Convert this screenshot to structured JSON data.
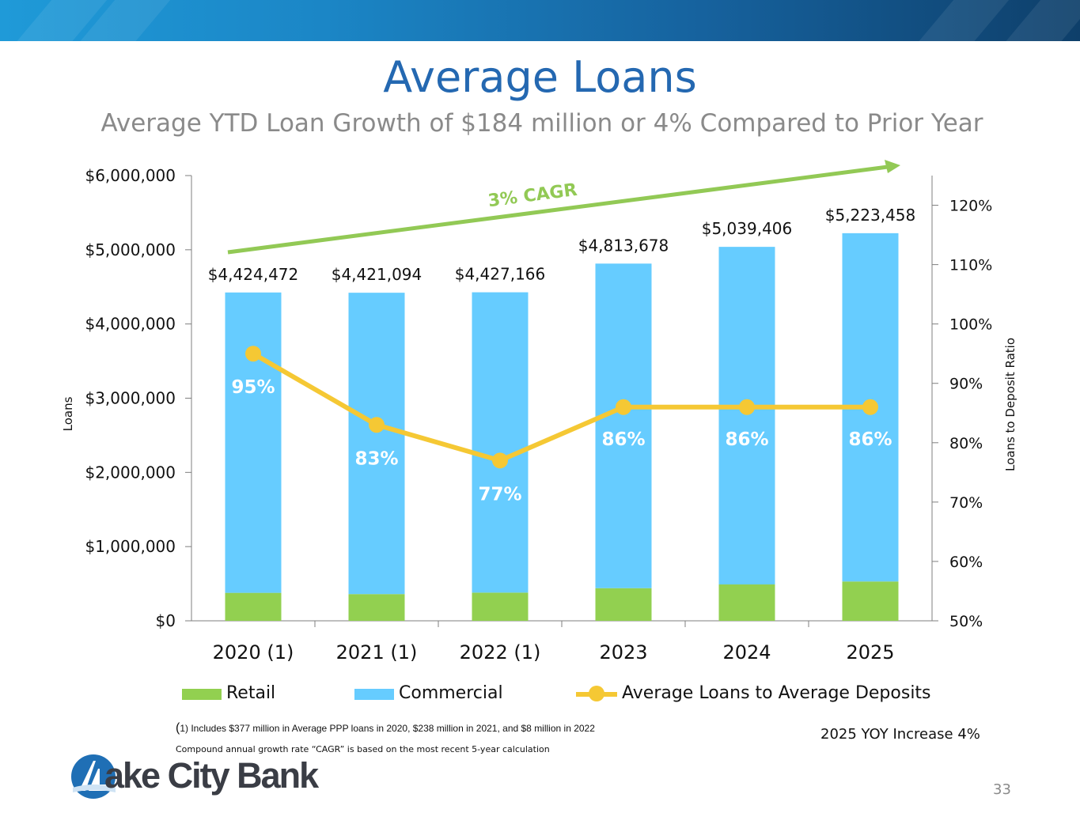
{
  "slide": {
    "title": "Average Loans",
    "subtitle": "Average YTD Loan Growth of $184 million or 4% Compared to Prior Year",
    "page_number": "33",
    "yoy_note": "2025 YOY Increase 4%",
    "footnote1_paren": "(",
    "footnote1_text": "1) Includes $377 million in Average PPP loans in 2020, $238 million in 2021, and $8 million in 2022",
    "footnote2": "Compound annual growth rate “CAGR” is based on the most recent 5-year calculation",
    "logo_text": "Lake City Bank",
    "logo_display_text": "ake City Bank"
  },
  "colors": {
    "retail": "#92d050",
    "commercial": "#66ccff",
    "ratio_line": "#f5c834",
    "cagr_arrow": "#92c955",
    "title": "#2468b1",
    "header_band": "#1b86c6"
  },
  "legend": {
    "retail": "Retail",
    "commercial": "Commercial",
    "ratio": "Average Loans to Average Deposits"
  },
  "chart_data": {
    "type": "bar",
    "stacked": true,
    "categories": [
      "2020 (1)",
      "2021 (1)",
      "2022 (1)",
      "2023",
      "2024",
      "2025"
    ],
    "series": [
      {
        "name": "Retail",
        "axis": "left",
        "values": [
          377000,
          360000,
          380000,
          440000,
          490000,
          530000
        ]
      },
      {
        "name": "Commercial",
        "axis": "left",
        "values": [
          4047472,
          4061094,
          4047166,
          4373678,
          4549406,
          4693458
        ]
      },
      {
        "name": "Average Loans to Average Deposits",
        "type": "line",
        "axis": "right",
        "values": [
          95,
          83,
          77,
          86,
          86,
          86
        ]
      }
    ],
    "total_labels": [
      "$4,424,472",
      "$4,421,094",
      "$4,427,166",
      "$4,813,678",
      "$5,039,406",
      "$5,223,458"
    ],
    "ratio_labels": [
      "95%",
      "83%",
      "77%",
      "86%",
      "86%",
      "86%"
    ],
    "ylabel": "Loans",
    "y2label": "Loans to Deposit Ratio",
    "ylim": [
      0,
      6000000
    ],
    "yticks": [
      0,
      1000000,
      2000000,
      3000000,
      4000000,
      5000000,
      6000000
    ],
    "ytick_labels": [
      "$0",
      "$1,000,000",
      "$2,000,000",
      "$3,000,000",
      "$4,000,000",
      "$5,000,000",
      "$6,000,000"
    ],
    "y2lim": [
      50,
      125
    ],
    "y2ticks": [
      50,
      60,
      70,
      80,
      90,
      100,
      110,
      120
    ],
    "y2tick_labels": [
      "50%",
      "60%",
      "70%",
      "80%",
      "90%",
      "100%",
      "110%",
      "120%"
    ],
    "annotation": "3% CAGR",
    "grid": false,
    "legend_position": "bottom"
  }
}
